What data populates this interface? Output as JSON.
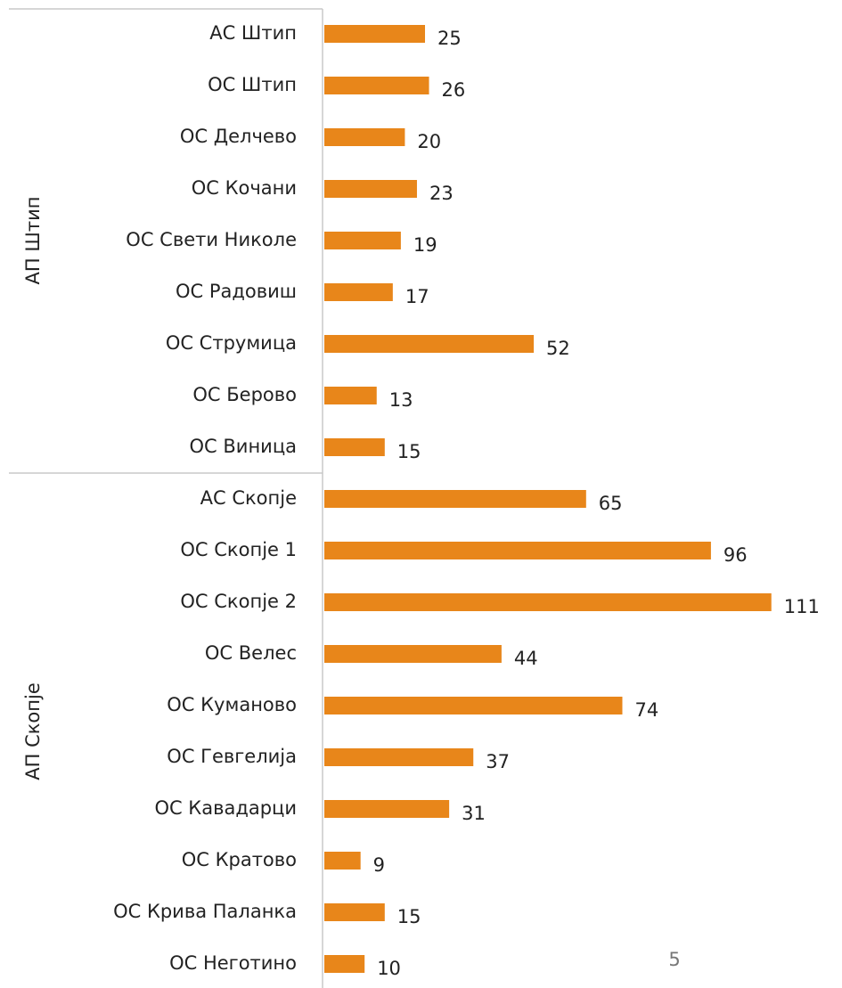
{
  "chart_data": {
    "type": "bar",
    "orientation": "horizontal",
    "color": "#e8861a",
    "groups": [
      {
        "label": "АП Штип",
        "categories": [
          "АС Штип",
          "ОС Штип",
          "ОС Делчево",
          "ОС Кочани",
          "ОС Свети Николе",
          "ОС Радовиш",
          "ОС Струмица",
          "ОС Берово",
          "ОС Виница"
        ],
        "values": [
          25,
          26,
          20,
          23,
          19,
          17,
          52,
          13,
          15
        ]
      },
      {
        "label": "АП Скопје",
        "categories": [
          "АС Скопје",
          "ОС Скопје 1",
          "ОС Скопје 2",
          "ОС Велес",
          "ОС Куманово",
          "ОС Гевгелија",
          "ОС Кавадарци",
          "ОС Кратово",
          "ОС Крива Паланка",
          "ОС Неготино"
        ],
        "values": [
          65,
          96,
          111,
          44,
          74,
          37,
          31,
          9,
          15,
          10
        ]
      }
    ]
  },
  "page_number": "5"
}
